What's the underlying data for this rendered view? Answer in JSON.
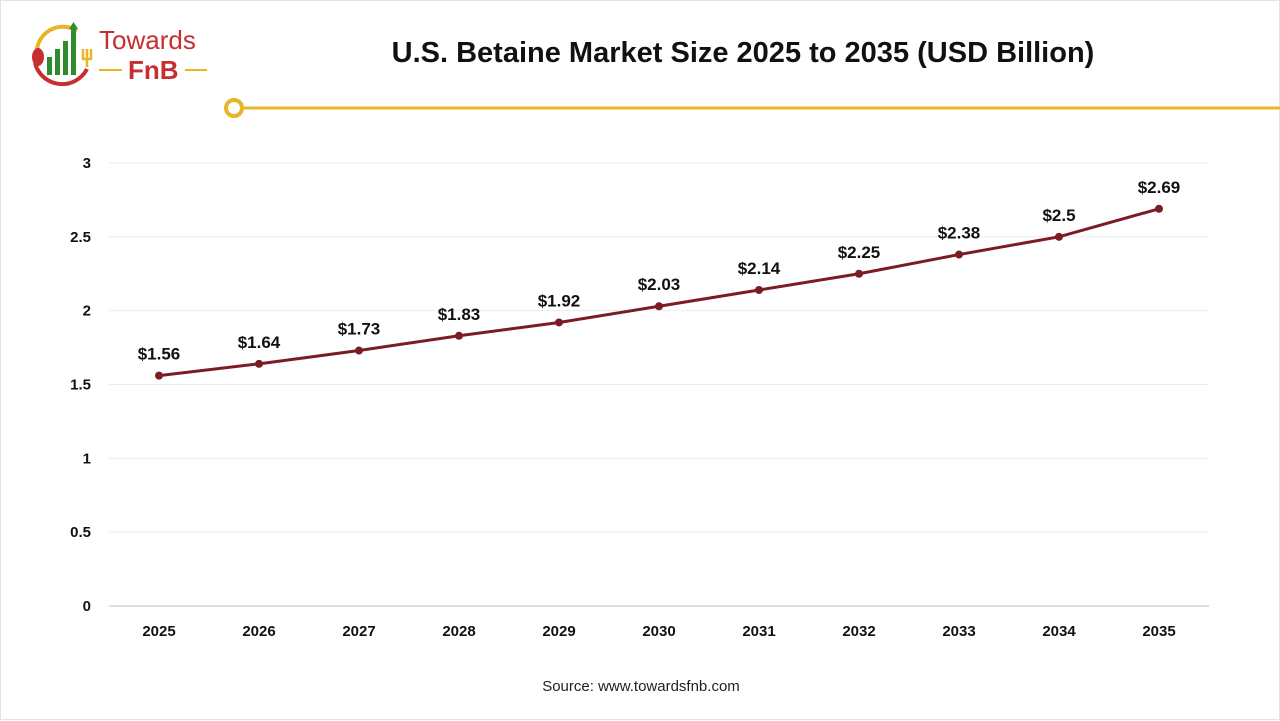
{
  "logo": {
    "line1": "Towards",
    "line2": "FnB"
  },
  "title": "U.S. Betaine Market Size 2025 to 2035 (USD Billion)",
  "source": "Source: www.towardsfnb.com",
  "colors": {
    "line": "#7b1c24",
    "accent": "#e8b527",
    "logo_red": "#c62f2f",
    "logo_green": "#2e8b2e"
  },
  "chart_data": {
    "type": "line",
    "title": "U.S. Betaine Market Size 2025 to 2035 (USD Billion)",
    "categories": [
      "2025",
      "2026",
      "2027",
      "2028",
      "2029",
      "2030",
      "2031",
      "2032",
      "2033",
      "2034",
      "2035"
    ],
    "values": [
      1.56,
      1.64,
      1.73,
      1.83,
      1.92,
      2.03,
      2.14,
      2.25,
      2.38,
      2.5,
      2.69
    ],
    "data_labels": [
      "$1.56",
      "$1.64",
      "$1.73",
      "$1.83",
      "$1.92",
      "$2.03",
      "$2.14",
      "$2.25",
      "$2.38",
      "$2.5",
      "$2.69"
    ],
    "yticks": [
      "0",
      "0.5",
      "1",
      "1.5",
      "2",
      "2.5",
      "3"
    ],
    "ylim": [
      0,
      3
    ],
    "grid": true,
    "legend": "none"
  }
}
